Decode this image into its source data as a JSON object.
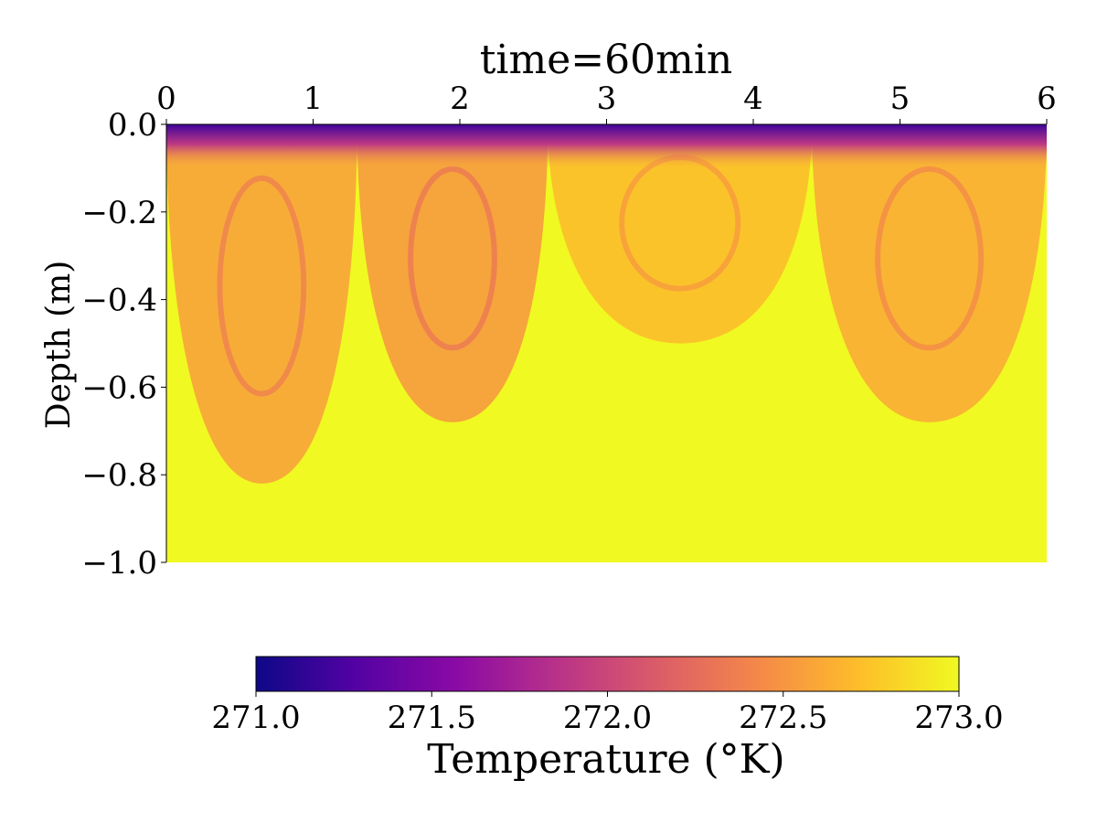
{
  "chart_data": {
    "type": "heatmap",
    "title": "time=60min",
    "xlabel": "",
    "ylabel": "Depth (m)",
    "xlim": [
      0,
      6
    ],
    "ylim": [
      -1.0,
      0.0
    ],
    "x_ticks": [
      0,
      1,
      2,
      3,
      4,
      5,
      6
    ],
    "x_tick_labels": [
      "0",
      "1",
      "2",
      "3",
      "4",
      "5",
      "6"
    ],
    "x_axis_position": "top",
    "y_ticks": [
      0.0,
      -0.2,
      -0.4,
      -0.6,
      -0.8,
      -1.0
    ],
    "y_tick_labels": [
      "0.0",
      "−0.2",
      "−0.4",
      "−0.6",
      "−0.8",
      "−1.0"
    ],
    "colormap": "plasma",
    "colormap_stops": [
      "#0d0887",
      "#5402a3",
      "#8b0aa5",
      "#b93289",
      "#db5c68",
      "#f48849",
      "#febd2a",
      "#f0f921"
    ],
    "colorbar": {
      "label": "Temperature (°K)",
      "range": [
        271.0,
        273.0
      ],
      "ticks": [
        271.0,
        271.5,
        272.0,
        272.5,
        273.0
      ],
      "tick_labels": [
        "271.0",
        "271.5",
        "272.0",
        "272.5",
        "273.0"
      ],
      "orientation": "horizontal",
      "placement": "bottom"
    },
    "grid": false,
    "field_summary": {
      "surface_temperature_K": 271.2,
      "deep_temperature_K": 273.0,
      "plume_temperature_K": 272.6,
      "plume_regions": [
        {
          "x_range": [
            0.0,
            1.3
          ],
          "max_depth_m": 0.82,
          "temperature_K": 272.55
        },
        {
          "x_range": [
            1.3,
            2.6
          ],
          "max_depth_m": 0.68,
          "temperature_K": 272.5
        },
        {
          "x_range": [
            2.6,
            4.4
          ],
          "max_depth_m": 0.5,
          "temperature_K": 272.7
        },
        {
          "x_range": [
            4.4,
            6.0
          ],
          "max_depth_m": 0.68,
          "temperature_K": 272.6
        }
      ]
    }
  }
}
